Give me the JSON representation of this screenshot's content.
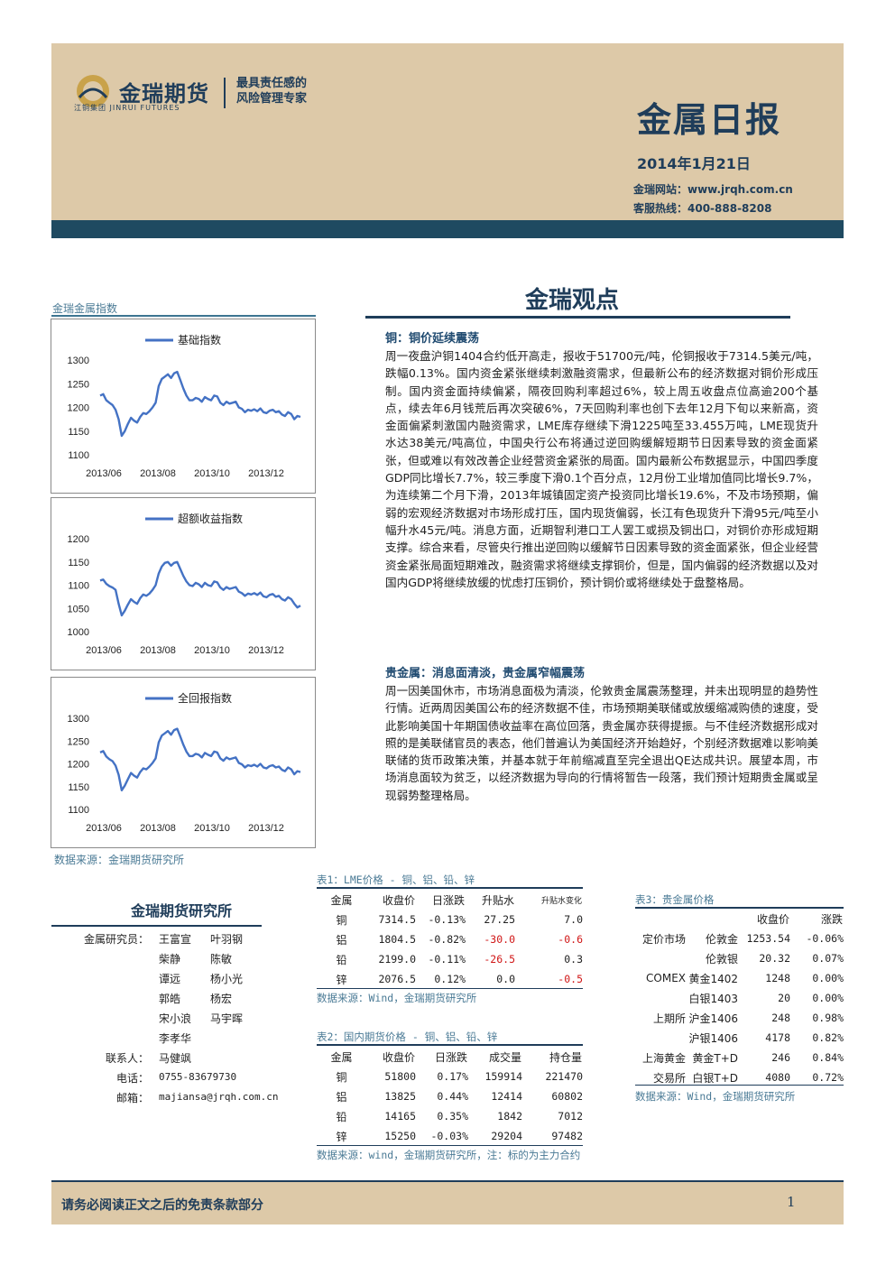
{
  "header": {
    "brand_cn": "金瑞期货",
    "brand_en": "江铜集团 JINRUI FUTURES",
    "slogan_line1": "最具责任感的",
    "slogan_line2": "风险管理专家",
    "report_title": "金属日报",
    "date": "2014年1月21日",
    "website": "金瑞网站：www.jrqh.com.cn",
    "hotline": "客服热线：400-888-8208"
  },
  "section_title": "金瑞观点",
  "charts_label": "金瑞金属指数",
  "charts_source": "数据来源：金瑞期货研究所",
  "chart_data": [
    {
      "type": "line",
      "title": "",
      "series": [
        {
          "name": "基础指数",
          "values": [
            1225,
            1228,
            1215,
            1210,
            1205,
            1195,
            1175,
            1140,
            1150,
            1165,
            1178,
            1172,
            1168,
            1180,
            1188,
            1186,
            1192,
            1200,
            1210,
            1245,
            1260,
            1265,
            1270,
            1262,
            1272,
            1275,
            1258,
            1240,
            1225,
            1215,
            1215,
            1220,
            1218,
            1212,
            1222,
            1218,
            1215,
            1225,
            1223,
            1210,
            1205,
            1212,
            1208,
            1210,
            1212,
            1200,
            1197,
            1190,
            1195,
            1193,
            1196,
            1192,
            1198,
            1190,
            1188,
            1193,
            1195,
            1190,
            1192,
            1185,
            1182,
            1190,
            1186,
            1175,
            1182,
            1180
          ]
        }
      ],
      "x_ticks": [
        "2013/06",
        "2013/08",
        "2013/10",
        "2013/12"
      ],
      "y_ticks": [
        1100,
        1150,
        1200,
        1250,
        1300
      ],
      "ylim": [
        1100,
        1300
      ]
    },
    {
      "type": "line",
      "title": "",
      "series": [
        {
          "name": "超额收益指数",
          "values": [
            1110,
            1112,
            1103,
            1098,
            1095,
            1090,
            1060,
            1035,
            1045,
            1058,
            1070,
            1064,
            1060,
            1072,
            1080,
            1077,
            1082,
            1090,
            1100,
            1125,
            1140,
            1148,
            1150,
            1142,
            1148,
            1150,
            1135,
            1120,
            1108,
            1100,
            1098,
            1105,
            1102,
            1096,
            1105,
            1100,
            1098,
            1108,
            1106,
            1095,
            1090,
            1096,
            1092,
            1094,
            1096,
            1086,
            1083,
            1077,
            1082,
            1080,
            1083,
            1079,
            1084,
            1076,
            1074,
            1079,
            1081,
            1075,
            1077,
            1070,
            1067,
            1074,
            1070,
            1060,
            1052,
            1056
          ]
        }
      ],
      "x_ticks": [
        "2013/06",
        "2013/08",
        "2013/10",
        "2013/12"
      ],
      "y_ticks": [
        1000,
        1050,
        1100,
        1150,
        1200
      ],
      "ylim": [
        1000,
        1200
      ]
    },
    {
      "type": "line",
      "title": "",
      "series": [
        {
          "name": "全回报指数",
          "values": [
            1225,
            1228,
            1216,
            1210,
            1206,
            1196,
            1176,
            1142,
            1152,
            1166,
            1180,
            1174,
            1170,
            1182,
            1190,
            1188,
            1194,
            1202,
            1212,
            1247,
            1262,
            1267,
            1272,
            1264,
            1274,
            1277,
            1260,
            1242,
            1227,
            1217,
            1217,
            1222,
            1220,
            1214,
            1224,
            1220,
            1217,
            1227,
            1225,
            1212,
            1207,
            1214,
            1210,
            1212,
            1214,
            1202,
            1199,
            1192,
            1197,
            1195,
            1198,
            1194,
            1200,
            1192,
            1190,
            1195,
            1197,
            1192,
            1194,
            1187,
            1184,
            1192,
            1188,
            1177,
            1184,
            1182
          ]
        }
      ],
      "x_ticks": [
        "2013/06",
        "2013/08",
        "2013/10",
        "2013/12"
      ],
      "y_ticks": [
        1100,
        1150,
        1200,
        1250,
        1300
      ],
      "ylim": [
        1100,
        1300
      ]
    }
  ],
  "article": {
    "copper_heading": "铜：铜价延续震荡",
    "copper_body": "周一夜盘沪铜1404合约低开高走，报收于51700元/吨，伦铜报收于7314.5美元/吨，跌幅0.13%。国内资金紧张继续刺激融资需求，但最新公布的经济数据对铜价形成压制。国内资金面持续偏紧，隔夜回购利率超过6%，较上周五收盘点位高逾200个基点，续去年6月钱荒后再次突破6%，7天回购利率也创下去年12月下旬以来新高，资金面偏紧刺激国内融资需求，LME库存继续下滑1225吨至33.455万吨，LME现货升水达38美元/吨高位，中国央行公布将通过逆回购缓解短期节日因素导致的资金面紧张，但或难以有效改善企业经营资金紧张的局面。国内最新公布数据显示，中国四季度GDP同比增长7.7%，较三季度下滑0.1个百分点，12月份工业增加值同比增长9.7%，为连续第二个月下滑，2013年城镇固定资产投资同比增长19.6%，不及市场预期，偏弱的宏观经济数据对市场形成打压，国内现货偏弱，长江有色现货升下滑95元/吨至小幅升水45元/吨。消息方面，近期智利港口工人罢工或损及铜出口，对铜价亦形成短期支撑。综合来看，尽管央行推出逆回购以缓解节日因素导致的资金面紧张，但企业经营资金紧张局面短期难改，融资需求将继续支撑铜价，但是，国内偏弱的经济数据以及对国内GDP将继续放缓的忧虑打压铜价，预计铜价或将继续处于盘整格局。",
    "precious_heading": "贵金属：消息面清淡，贵金属窄幅震荡",
    "precious_body": "周一因美国休市，市场消息面极为清淡，伦敦贵金属震荡整理，并未出现明显的趋势性行情。近两周因美国公布的经济数据不佳，市场预期美联储或放缓缩减购债的速度，受此影响美国十年期国债收益率在高位回落，贵金属亦获得提振。与不佳经济数据形成对照的是美联储官员的表态，他们普遍认为美国经济开始趋好，个别经济数据难以影响美联储的货币政策决策，并基本就于年前缩减直至完全退出QE达成共识。展望本周，市场消息面较为贫乏，以经济数据为导向的行情将暂告一段落，我们预计短期贵金属或呈现弱势整理格局。"
  },
  "team": {
    "title": "金瑞期货研究所",
    "role_researchers": "金属研究员：",
    "researchers": [
      [
        "王富宣",
        "叶羽钢"
      ],
      [
        "柴静",
        "陈敏"
      ],
      [
        "谭远",
        "杨小光"
      ],
      [
        "郭皓",
        "杨宏"
      ],
      [
        "宋小浪",
        "马宇晖"
      ],
      [
        "李孝华",
        ""
      ]
    ],
    "role_contact": "联系人：",
    "contact": "马健飒",
    "role_phone": "电话：",
    "phone": "0755-83679730",
    "role_email": "邮箱：",
    "email": "majiansa@jrqh.com.cn"
  },
  "table1": {
    "caption": "表1：LME价格 - 铜、铝、铅、锌",
    "headers": [
      "金属",
      "收盘价",
      "日涨跌",
      "升贴水",
      "升贴水变化"
    ],
    "rows": [
      [
        "铜",
        "7314.5",
        "-0.13%",
        "27.25",
        "7.0"
      ],
      [
        "铝",
        "1804.5",
        "-0.82%",
        "-30.0",
        "-0.6"
      ],
      [
        "铅",
        "2199.0",
        "-0.11%",
        "-26.5",
        "0.3"
      ],
      [
        "锌",
        "2076.5",
        "0.12%",
        "0.0",
        "-0.5"
      ]
    ],
    "source": "数据来源：Wind，金瑞期货研究所"
  },
  "table2": {
    "caption": "表2：国内期货价格 - 铜、铝、铅、锌",
    "headers": [
      "金属",
      "收盘价",
      "日涨跌",
      "成交量",
      "持仓量"
    ],
    "rows": [
      [
        "铜",
        "51800",
        "0.17%",
        "159914",
        "221470"
      ],
      [
        "铝",
        "13825",
        "0.44%",
        "12414",
        "60802"
      ],
      [
        "铅",
        "14165",
        "0.35%",
        "1842",
        "7012"
      ],
      [
        "锌",
        "15250",
        "-0.03%",
        "29204",
        "97482"
      ]
    ],
    "source": "数据来源：wind，金瑞期货研究所，注：标的为主力合约"
  },
  "table3": {
    "caption": "表3：贵金属价格",
    "headers": [
      "",
      "",
      "收盘价",
      "涨跌"
    ],
    "rows": [
      [
        "定价市场",
        "伦敦金",
        "1253.54",
        "-0.06%"
      ],
      [
        "",
        "伦敦银",
        "20.32",
        "0.07%"
      ],
      [
        "COMEX",
        "黄金1402",
        "1248",
        "0.00%"
      ],
      [
        "",
        "白银1403",
        "20",
        "0.00%"
      ],
      [
        "上期所",
        "沪金1406",
        "248",
        "0.98%"
      ],
      [
        "",
        "沪银1406",
        "4178",
        "0.82%"
      ],
      [
        "上海黄金",
        "黄金T+D",
        "246",
        "0.84%"
      ],
      [
        "交易所",
        "白银T+D",
        "4080",
        "0.72%"
      ]
    ],
    "source": "数据来源：Wind，金瑞期货研究所"
  },
  "footer": {
    "disclaimer": "请务必阅读正文之后的免责条款部分",
    "page": "1"
  },
  "colors": {
    "navy": "#1f3d5a",
    "tan": "#ddc9a8",
    "series": "#4472c4",
    "negative": "#d01616"
  }
}
